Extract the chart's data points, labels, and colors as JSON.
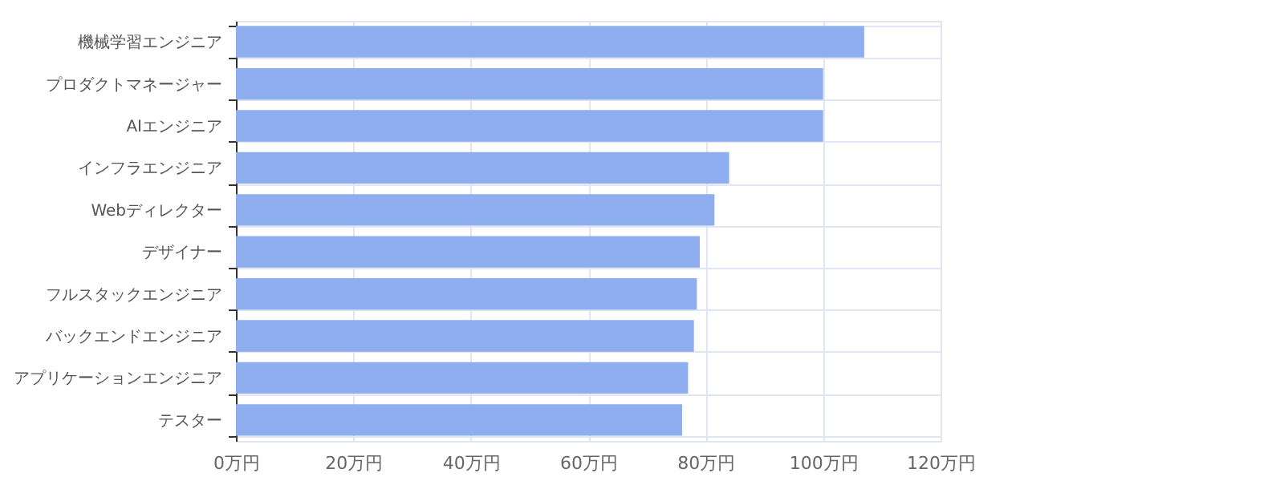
{
  "chart_data": {
    "type": "bar",
    "orientation": "horizontal",
    "categories": [
      "機械学習エンジニア",
      "プロダクトマネージャー",
      "AIエンジニア",
      "インフラエンジニア",
      "Webディレクター",
      "デザイナー",
      "フルスタックエンジニア",
      "バックエンドエンジニア",
      "アプリケーションエンジニア",
      "テスター"
    ],
    "values": [
      107,
      100,
      100,
      84,
      81.5,
      79,
      78.5,
      78,
      77,
      76
    ],
    "color": "#8eaeef",
    "grid": true,
    "xlim": [
      0,
      120
    ],
    "xticks": [
      {
        "value": 0,
        "label": "0万円"
      },
      {
        "value": 20,
        "label": "20万円"
      },
      {
        "value": 40,
        "label": "40万円"
      },
      {
        "value": 60,
        "label": "60万円"
      },
      {
        "value": 80,
        "label": "80万円"
      },
      {
        "value": 100,
        "label": "100万円"
      },
      {
        "value": 120,
        "label": "120万円"
      }
    ]
  }
}
